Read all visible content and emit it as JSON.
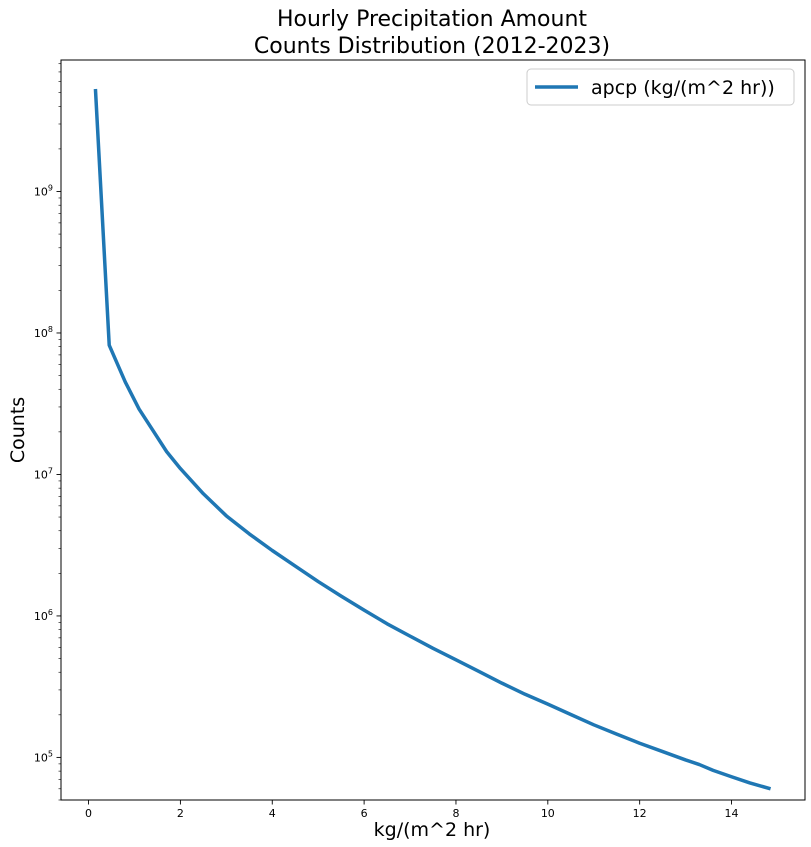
{
  "chart_data": {
    "type": "line",
    "title_lines": [
      "Hourly Precipitation Amount",
      "Counts Distribution (2012-2023)"
    ],
    "xlabel": "kg/(m^2 hr)",
    "ylabel": "Counts",
    "xlim": [
      -0.6,
      15.6
    ],
    "ylim": [
      50000,
      8500000000
    ],
    "yscale": "log",
    "xticks": [
      0,
      2,
      4,
      6,
      8,
      10,
      12,
      14
    ],
    "yticks": [
      {
        "value": 100000,
        "mantissa": "10",
        "exp": "5"
      },
      {
        "value": 1000000,
        "mantissa": "10",
        "exp": "6"
      },
      {
        "value": 10000000,
        "mantissa": "10",
        "exp": "7"
      },
      {
        "value": 100000000,
        "mantissa": "10",
        "exp": "8"
      },
      {
        "value": 1000000000,
        "mantissa": "10",
        "exp": "9"
      }
    ],
    "grid": false,
    "legend_position": "top-right",
    "series": [
      {
        "name": "apcp (kg/(m^2 hr))",
        "color": "#1f77b4",
        "x": [
          0.15,
          0.45,
          0.8,
          1.1,
          1.4,
          1.7,
          2.0,
          2.5,
          3.0,
          3.5,
          4.0,
          4.5,
          5.0,
          5.5,
          6.0,
          6.5,
          7.0,
          7.5,
          8.0,
          8.5,
          9.0,
          9.5,
          10.0,
          10.5,
          11.0,
          11.5,
          12.0,
          12.5,
          13.0,
          13.3,
          13.6,
          14.0,
          14.4,
          14.85
        ],
        "y": [
          5300000000,
          82000000,
          45000000,
          29000000,
          20500000,
          14500000,
          11000000,
          7300000,
          5100000,
          3800000,
          2900000,
          2250000,
          1750000,
          1380000,
          1100000,
          880000,
          720000,
          590000,
          490000,
          405000,
          335000,
          280000,
          238000,
          201000,
          170000,
          146000,
          126000,
          110000,
          96000,
          89000,
          81000,
          73000,
          66000,
          60000
        ]
      }
    ]
  }
}
